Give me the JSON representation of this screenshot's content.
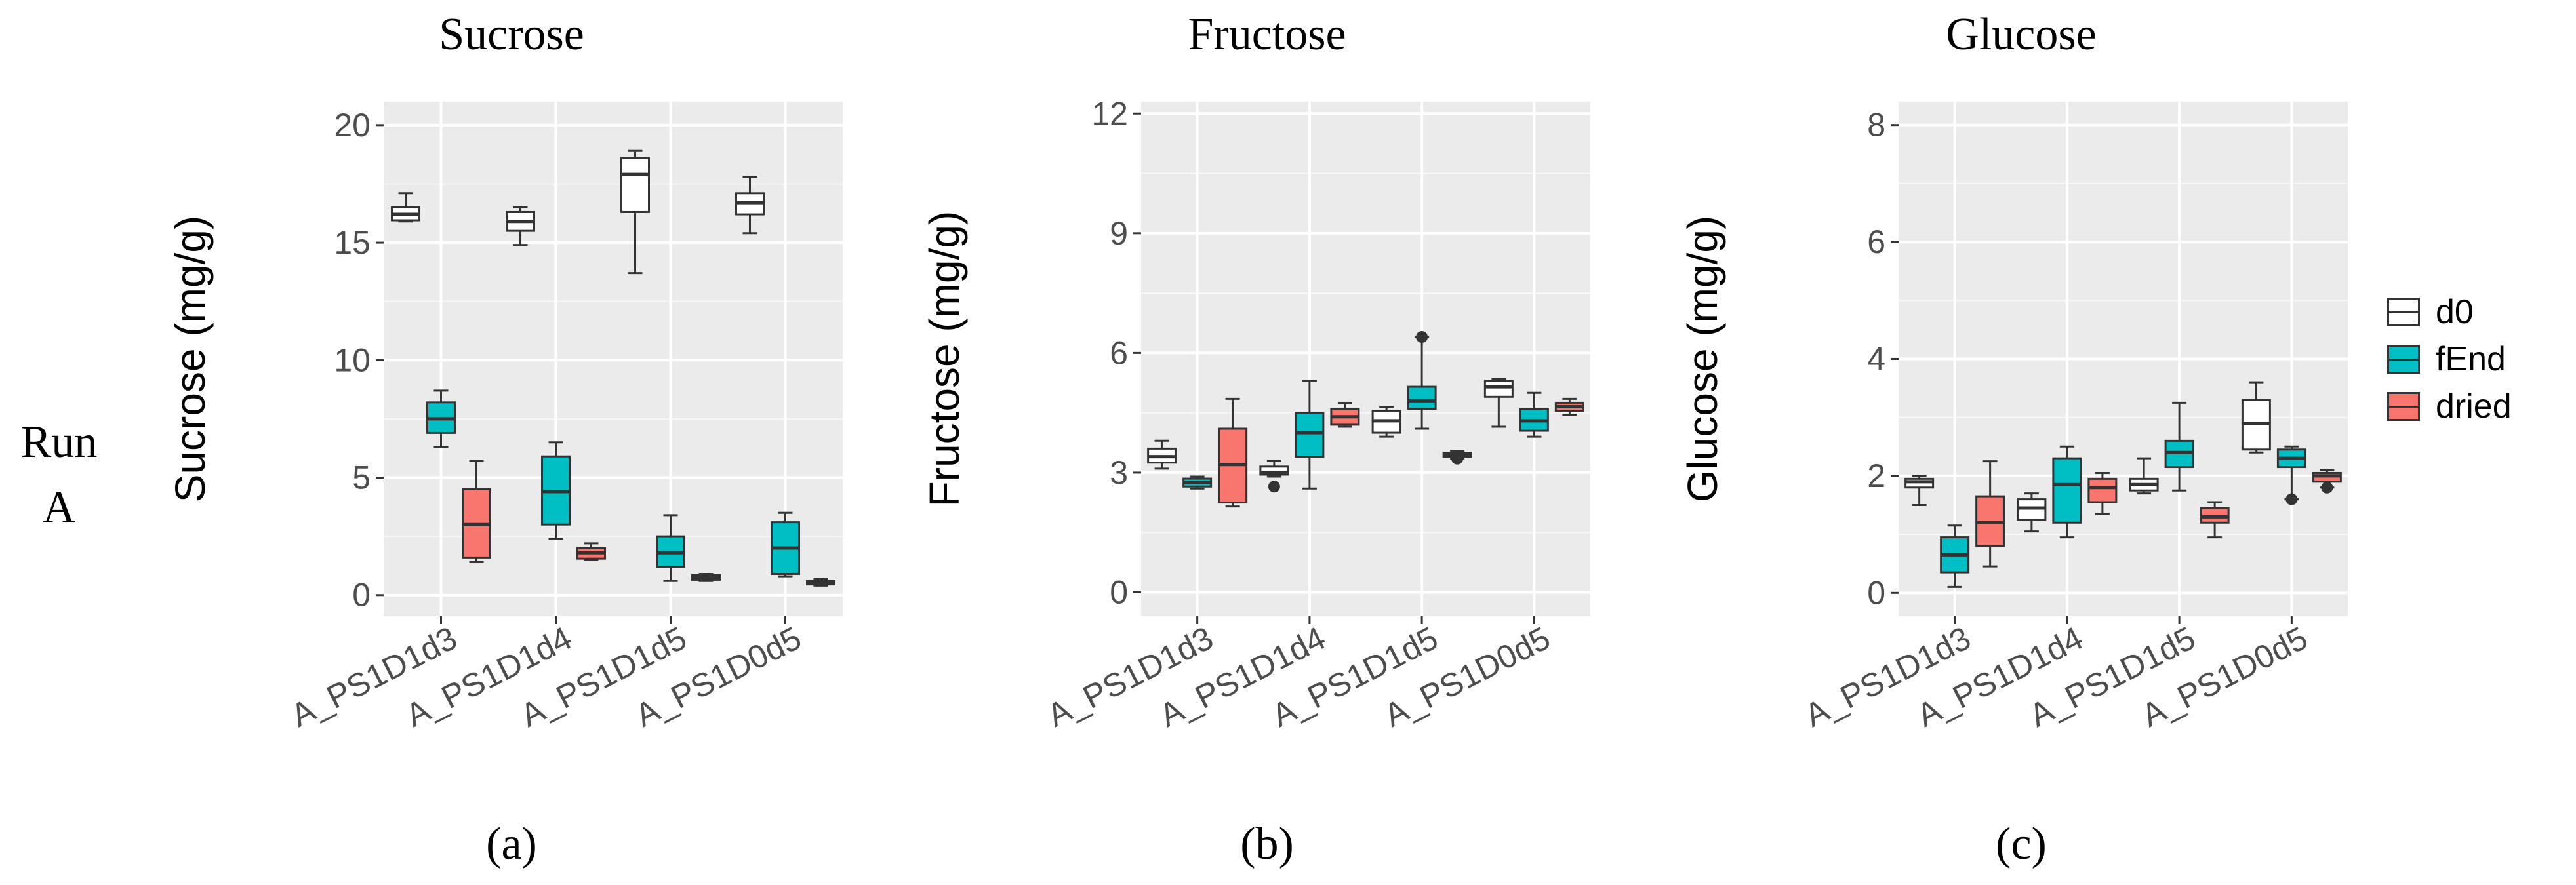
{
  "figure": {
    "row_label_line1": "Run",
    "row_label_line2": "A"
  },
  "legend": [
    {
      "name": "d0",
      "color": "#ffffff"
    },
    {
      "name": "fEnd",
      "color": "#00bfc4"
    },
    {
      "name": "dried",
      "color": "#f8766d"
    }
  ],
  "chart_data": [
    {
      "type": "boxplot",
      "panel_label": "(a)",
      "title": "Sucrose",
      "xlabel": "",
      "ylabel": "Sucrose (mg/g)",
      "ylim": [
        -0.9,
        21
      ],
      "yticks": [
        0,
        5,
        10,
        15,
        20
      ],
      "categories": [
        "A_PS1D1d3",
        "A_PS1D1d4",
        "A_PS1D1d5",
        "A_PS1D0d5"
      ],
      "series": [
        {
          "name": "d0",
          "color": "#ffffff",
          "boxes": [
            {
              "min": 15.9,
              "q1": 15.95,
              "median": 16.2,
              "q3": 16.5,
              "max": 17.1,
              "outliers": []
            },
            {
              "min": 14.9,
              "q1": 15.5,
              "median": 15.9,
              "q3": 16.3,
              "max": 16.5,
              "outliers": []
            },
            {
              "min": 13.7,
              "q1": 16.3,
              "median": 17.9,
              "q3": 18.6,
              "max": 18.9,
              "outliers": []
            },
            {
              "min": 15.4,
              "q1": 16.2,
              "median": 16.7,
              "q3": 17.1,
              "max": 17.8,
              "outliers": []
            }
          ]
        },
        {
          "name": "fEnd",
          "color": "#00bfc4",
          "boxes": [
            {
              "min": 6.3,
              "q1": 6.9,
              "median": 7.5,
              "q3": 8.2,
              "max": 8.7,
              "outliers": []
            },
            {
              "min": 2.4,
              "q1": 3.0,
              "median": 4.4,
              "q3": 5.9,
              "max": 6.5,
              "outliers": []
            },
            {
              "min": 0.6,
              "q1": 1.2,
              "median": 1.8,
              "q3": 2.5,
              "max": 3.4,
              "outliers": []
            },
            {
              "min": 0.8,
              "q1": 0.9,
              "median": 2.0,
              "q3": 3.1,
              "max": 3.5,
              "outliers": []
            }
          ]
        },
        {
          "name": "dried",
          "color": "#f8766d",
          "boxes": [
            {
              "min": 1.4,
              "q1": 1.6,
              "median": 3.0,
              "q3": 4.5,
              "max": 5.7,
              "outliers": []
            },
            {
              "min": 1.5,
              "q1": 1.55,
              "median": 1.8,
              "q3": 2.0,
              "max": 2.2,
              "outliers": []
            },
            {
              "min": 0.6,
              "q1": 0.65,
              "median": 0.75,
              "q3": 0.85,
              "max": 0.9,
              "outliers": []
            },
            {
              "min": 0.4,
              "q1": 0.45,
              "median": 0.5,
              "q3": 0.6,
              "max": 0.7,
              "outliers": []
            }
          ]
        }
      ]
    },
    {
      "type": "boxplot",
      "panel_label": "(b)",
      "title": "Fructose",
      "xlabel": "",
      "ylabel": "Fructose (mg/g)",
      "ylim": [
        -0.6,
        12.3
      ],
      "yticks": [
        0,
        3,
        6,
        9,
        12
      ],
      "categories": [
        "A_PS1D1d3",
        "A_PS1D1d4",
        "A_PS1D1d5",
        "A_PS1D0d5"
      ],
      "series": [
        {
          "name": "d0",
          "color": "#ffffff",
          "boxes": [
            {
              "min": 3.1,
              "q1": 3.25,
              "median": 3.4,
              "q3": 3.6,
              "max": 3.8,
              "outliers": []
            },
            {
              "min": 2.9,
              "q1": 2.95,
              "median": 3.0,
              "q3": 3.15,
              "max": 3.3,
              "outliers": [
                2.65
              ]
            },
            {
              "min": 3.9,
              "q1": 4.0,
              "median": 4.3,
              "q3": 4.55,
              "max": 4.65,
              "outliers": []
            },
            {
              "min": 4.15,
              "q1": 4.9,
              "median": 5.15,
              "q3": 5.3,
              "max": 5.35,
              "outliers": []
            }
          ]
        },
        {
          "name": "fEnd",
          "color": "#00bfc4",
          "boxes": [
            {
              "min": 2.6,
              "q1": 2.65,
              "median": 2.75,
              "q3": 2.85,
              "max": 2.9,
              "outliers": []
            },
            {
              "min": 2.6,
              "q1": 3.4,
              "median": 4.0,
              "q3": 4.5,
              "max": 5.3,
              "outliers": []
            },
            {
              "min": 4.1,
              "q1": 4.6,
              "median": 4.8,
              "q3": 5.15,
              "max": 6.4,
              "outliers": [
                6.4
              ]
            },
            {
              "min": 3.9,
              "q1": 4.05,
              "median": 4.3,
              "q3": 4.6,
              "max": 5.0,
              "outliers": []
            }
          ]
        },
        {
          "name": "dried",
          "color": "#f8766d",
          "boxes": [
            {
              "min": 2.15,
              "q1": 2.25,
              "median": 3.2,
              "q3": 4.1,
              "max": 4.85,
              "outliers": []
            },
            {
              "min": 4.15,
              "q1": 4.2,
              "median": 4.4,
              "q3": 4.6,
              "max": 4.75,
              "outliers": []
            },
            {
              "min": 3.35,
              "q1": 3.4,
              "median": 3.45,
              "q3": 3.5,
              "max": 3.55,
              "outliers": [
                3.35
              ]
            },
            {
              "min": 4.45,
              "q1": 4.55,
              "median": 4.65,
              "q3": 4.75,
              "max": 4.85,
              "outliers": []
            }
          ]
        }
      ]
    },
    {
      "type": "boxplot",
      "panel_label": "(c)",
      "title": "Glucose",
      "xlabel": "",
      "ylabel": "Glucose (mg/g)",
      "ylim": [
        -0.4,
        8.4
      ],
      "yticks": [
        0,
        2,
        4,
        6,
        8
      ],
      "categories": [
        "A_PS1D1d3",
        "A_PS1D1d4",
        "A_PS1D1d5",
        "A_PS1D0d5"
      ],
      "series": [
        {
          "name": "d0",
          "color": "#ffffff",
          "boxes": [
            {
              "min": 1.5,
              "q1": 1.8,
              "median": 1.9,
              "q3": 1.95,
              "max": 2.0,
              "outliers": []
            },
            {
              "min": 1.05,
              "q1": 1.25,
              "median": 1.45,
              "q3": 1.6,
              "max": 1.7,
              "outliers": []
            },
            {
              "min": 1.7,
              "q1": 1.75,
              "median": 1.85,
              "q3": 1.95,
              "max": 2.3,
              "outliers": []
            },
            {
              "min": 2.4,
              "q1": 2.45,
              "median": 2.9,
              "q3": 3.3,
              "max": 3.6,
              "outliers": []
            }
          ]
        },
        {
          "name": "fEnd",
          "color": "#00bfc4",
          "boxes": [
            {
              "min": 0.1,
              "q1": 0.35,
              "median": 0.65,
              "q3": 0.95,
              "max": 1.15,
              "outliers": []
            },
            {
              "min": 0.95,
              "q1": 1.2,
              "median": 1.85,
              "q3": 2.3,
              "max": 2.5,
              "outliers": []
            },
            {
              "min": 1.75,
              "q1": 2.15,
              "median": 2.4,
              "q3": 2.6,
              "max": 3.25,
              "outliers": []
            },
            {
              "min": 1.6,
              "q1": 2.15,
              "median": 2.3,
              "q3": 2.45,
              "max": 2.5,
              "outliers": [
                1.6
              ]
            }
          ]
        },
        {
          "name": "dried",
          "color": "#f8766d",
          "boxes": [
            {
              "min": 0.45,
              "q1": 0.8,
              "median": 1.2,
              "q3": 1.65,
              "max": 2.25,
              "outliers": []
            },
            {
              "min": 1.35,
              "q1": 1.55,
              "median": 1.8,
              "q3": 1.95,
              "max": 2.05,
              "outliers": []
            },
            {
              "min": 0.95,
              "q1": 1.2,
              "median": 1.3,
              "q3": 1.45,
              "max": 1.55,
              "outliers": []
            },
            {
              "min": 1.8,
              "q1": 1.9,
              "median": 2.0,
              "q3": 2.05,
              "max": 2.1,
              "outliers": [
                1.8
              ]
            }
          ]
        }
      ]
    }
  ]
}
